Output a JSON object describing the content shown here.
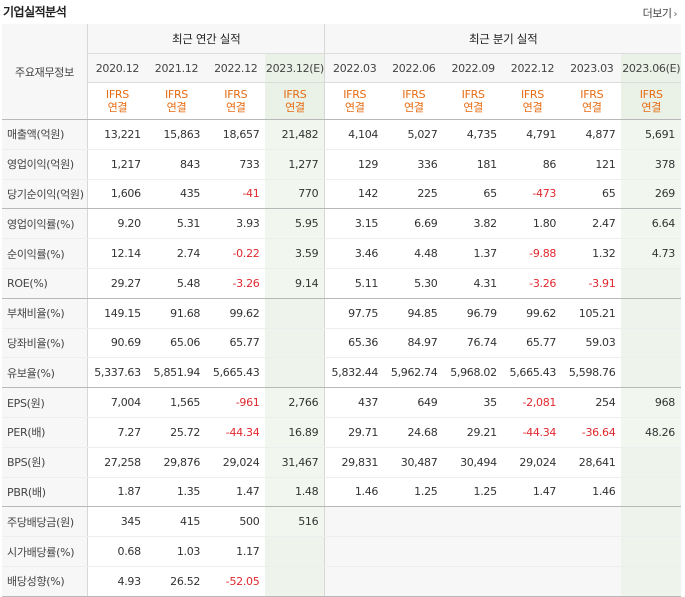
{
  "header": {
    "title": "기업실적분석",
    "more_label": "더보기",
    "more_icon": "chevron-right-icon"
  },
  "table": {
    "row_header_label": "주요재무정보",
    "annual_group_label": "최근 연간 실적",
    "quarter_group_label": "최근 분기 실적",
    "periods": [
      "2020.12",
      "2021.12",
      "2022.12",
      "2023.12(E)",
      "2022.03",
      "2022.06",
      "2022.09",
      "2022.12",
      "2023.03",
      "2023.06(E)"
    ],
    "basis_top": [
      "IFRS",
      "IFRS",
      "IFRS",
      "IFRS",
      "IFRS",
      "IFRS",
      "IFRS",
      "IFRS",
      "IFRS",
      "IFRS"
    ],
    "basis_bottom": [
      "연결",
      "연결",
      "연결",
      "연결",
      "연결",
      "연결",
      "연결",
      "연결",
      "연결",
      "연결"
    ],
    "rows": [
      {
        "label": "매출액(억원)",
        "values": [
          "13,221",
          "15,863",
          "18,657",
          "21,482",
          "4,104",
          "5,027",
          "4,735",
          "4,791",
          "4,877",
          "5,691"
        ]
      },
      {
        "label": "영업이익(억원)",
        "values": [
          "1,217",
          "843",
          "733",
          "1,277",
          "129",
          "336",
          "181",
          "86",
          "121",
          "378"
        ]
      },
      {
        "label": "당기순이익(억원)",
        "values": [
          "1,606",
          "435",
          "-41",
          "770",
          "142",
          "225",
          "65",
          "-473",
          "65",
          "269"
        ]
      },
      {
        "label": "영업이익률(%)",
        "values": [
          "9.20",
          "5.31",
          "3.93",
          "5.95",
          "3.15",
          "6.69",
          "3.82",
          "1.80",
          "2.47",
          "6.64"
        ]
      },
      {
        "label": "순이익률(%)",
        "values": [
          "12.14",
          "2.74",
          "-0.22",
          "3.59",
          "3.46",
          "4.48",
          "1.37",
          "-9.88",
          "1.32",
          "4.73"
        ]
      },
      {
        "label": "ROE(%)",
        "values": [
          "29.27",
          "5.48",
          "-3.26",
          "9.14",
          "5.11",
          "5.30",
          "4.31",
          "-3.26",
          "-3.91",
          ""
        ]
      },
      {
        "label": "부채비율(%)",
        "values": [
          "149.15",
          "91.68",
          "99.62",
          "",
          "97.75",
          "94.85",
          "96.79",
          "99.62",
          "105.21",
          ""
        ]
      },
      {
        "label": "당좌비율(%)",
        "values": [
          "90.69",
          "65.06",
          "65.77",
          "",
          "65.36",
          "84.97",
          "76.74",
          "65.77",
          "59.03",
          ""
        ]
      },
      {
        "label": "유보율(%)",
        "values": [
          "5,337.63",
          "5,851.94",
          "5,665.43",
          "",
          "5,832.44",
          "5,962.74",
          "5,968.02",
          "5,665.43",
          "5,598.76",
          ""
        ]
      },
      {
        "label": "EPS(원)",
        "values": [
          "7,004",
          "1,565",
          "-961",
          "2,766",
          "437",
          "649",
          "35",
          "-2,081",
          "254",
          "968"
        ]
      },
      {
        "label": "PER(배)",
        "values": [
          "7.27",
          "25.72",
          "-44.34",
          "16.89",
          "29.71",
          "24.68",
          "29.21",
          "-44.34",
          "-36.64",
          "48.26"
        ]
      },
      {
        "label": "BPS(원)",
        "values": [
          "27,258",
          "29,876",
          "29,024",
          "31,467",
          "29,831",
          "30,487",
          "30,494",
          "29,024",
          "28,641",
          ""
        ]
      },
      {
        "label": "PBR(배)",
        "values": [
          "1.87",
          "1.35",
          "1.47",
          "1.48",
          "1.46",
          "1.25",
          "1.25",
          "1.47",
          "1.46",
          ""
        ]
      },
      {
        "label": "주당배당금(원)",
        "values": [
          "345",
          "415",
          "500",
          "516",
          "",
          "",
          "",
          "",
          "",
          ""
        ]
      },
      {
        "label": "시가배당률(%)",
        "values": [
          "0.68",
          "1.03",
          "1.17",
          "",
          "",
          "",
          "",
          "",
          "",
          ""
        ]
      },
      {
        "label": "배당성향(%)",
        "values": [
          "4.93",
          "26.52",
          "-52.05",
          "",
          "",
          "",
          "",
          "",
          "",
          ""
        ]
      }
    ]
  },
  "colors": {
    "negative": "#e0282e",
    "basis": "#e66b12",
    "estimate_bg": "#eaf2e7",
    "header_bg": "#f7f7f7"
  }
}
